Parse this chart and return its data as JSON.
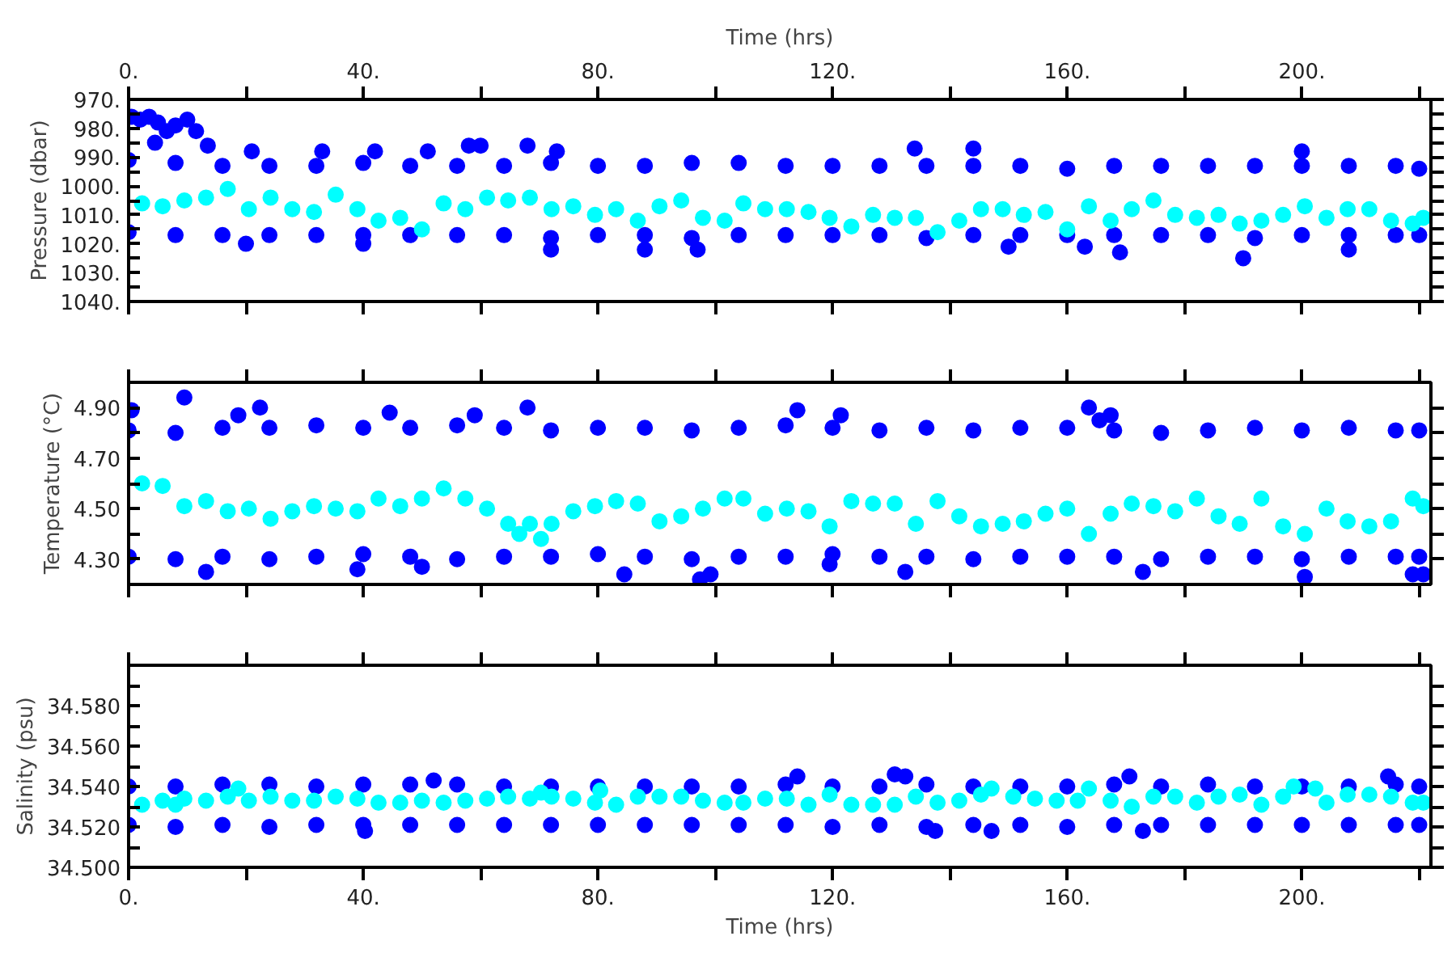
{
  "chart_data": [
    {
      "type": "scatter",
      "ylabel": "Pressure (dbar)",
      "x2label": "Time (hrs)",
      "marker": "circle",
      "tick_labels": "y",
      "xlim": [
        0,
        222
      ],
      "xticks": [
        0,
        20,
        40,
        60,
        80,
        100,
        120,
        140,
        160,
        180,
        200,
        220
      ],
      "x2lim": [
        0,
        222
      ],
      "x2ticks": [
        {
          "value": 0,
          "label": "0."
        },
        {
          "value": 20,
          "label": null
        },
        {
          "value": 40,
          "label": "40."
        },
        {
          "value": 60,
          "label": null
        },
        {
          "value": 80,
          "label": "80."
        },
        {
          "value": 100,
          "label": null
        },
        {
          "value": 120,
          "label": "120."
        },
        {
          "value": 140,
          "label": null
        },
        {
          "value": 160,
          "label": "160."
        },
        {
          "value": 180,
          "label": null
        },
        {
          "value": 200,
          "label": "200."
        },
        {
          "value": 220,
          "label": null
        }
      ],
      "ylim": [
        1040,
        970
      ],
      "yticks": [
        {
          "value": 970,
          "label": "970."
        },
        {
          "value": 975,
          "label": null
        },
        {
          "value": 980,
          "label": "980."
        },
        {
          "value": 985,
          "label": null
        },
        {
          "value": 990,
          "label": "990."
        },
        {
          "value": 995,
          "label": null
        },
        {
          "value": 1000,
          "label": "1000."
        },
        {
          "value": 1005,
          "label": null
        },
        {
          "value": 1010,
          "label": "1010."
        },
        {
          "value": 1015,
          "label": null
        },
        {
          "value": 1020,
          "label": "1020."
        },
        {
          "value": 1025,
          "label": null
        },
        {
          "value": 1030,
          "label": "1030."
        },
        {
          "value": 1035,
          "label": null
        },
        {
          "value": 1040,
          "label": "1040."
        }
      ],
      "series": [
        {
          "color": "#0000ff",
          "x": [
            0.5,
            2,
            3.5,
            5,
            6.5,
            8,
            10,
            11.5,
            4.5,
            0,
            8,
            16,
            24,
            32,
            40,
            48,
            56,
            64,
            72,
            80,
            88,
            96,
            104,
            112,
            120,
            128,
            136,
            144,
            152,
            160,
            168,
            176,
            184,
            192,
            200,
            208,
            216,
            220,
            0,
            8,
            16,
            24,
            32,
            40,
            48,
            56,
            64,
            72,
            80,
            88,
            96,
            104,
            112,
            120,
            128,
            136,
            144,
            152,
            160,
            168,
            176,
            184,
            192,
            200,
            208,
            216,
            220,
            13.5,
            21,
            33,
            42,
            51,
            58,
            60,
            68,
            73,
            20,
            40,
            72,
            88,
            97,
            150,
            163,
            169,
            190,
            208,
            134,
            144,
            200
          ],
          "values": [
            976,
            977,
            976,
            978,
            981,
            979,
            977,
            981,
            985,
            991,
            992,
            993,
            993,
            993,
            992,
            993,
            993,
            993,
            992,
            993,
            993,
            992,
            992,
            993,
            993,
            993,
            993,
            993,
            993,
            994,
            993,
            993,
            993,
            993,
            993,
            993,
            993,
            994,
            1016,
            1017,
            1017,
            1017,
            1017,
            1017,
            1017,
            1017,
            1017,
            1018,
            1017,
            1017,
            1018,
            1017,
            1017,
            1017,
            1017,
            1018,
            1017,
            1017,
            1017,
            1017,
            1017,
            1017,
            1018,
            1017,
            1017,
            1017,
            1017,
            986,
            988,
            988,
            988,
            988,
            986,
            986,
            986,
            988,
            1020,
            1020,
            1022,
            1022,
            1022,
            1021,
            1021,
            1023,
            1025,
            1022,
            987,
            987,
            988
          ]
        },
        {
          "color": "#00ffff",
          "x": [
            2.3,
            5.8,
            9.5,
            13.2,
            16.9,
            20.5,
            24.2,
            27.9,
            31.6,
            35.3,
            39.0,
            42.6,
            46.3,
            50.0,
            53.7,
            57.4,
            61.1,
            64.7,
            68.4,
            72.1,
            75.8,
            79.5,
            83.1,
            86.8,
            90.5,
            94.2,
            97.9,
            101.6,
            104.8,
            108.5,
            112.2,
            115.9,
            119.5,
            123.2,
            126.9,
            130.6,
            134.2,
            137.9,
            141.6,
            145.3,
            149.0,
            152.6,
            156.3,
            160.0,
            163.7,
            167.4,
            171.0,
            174.7,
            178.4,
            182.1,
            185.8,
            189.4,
            193.1,
            196.8,
            200.5,
            204.2,
            207.8,
            211.5,
            215.2,
            218.9,
            220.7
          ],
          "values": [
            1006,
            1007,
            1005,
            1004,
            1001,
            1008,
            1004,
            1008,
            1009,
            1003,
            1008,
            1012,
            1011,
            1015,
            1006,
            1008,
            1004,
            1005,
            1004,
            1008,
            1007,
            1010,
            1008,
            1012,
            1007,
            1005,
            1011,
            1012,
            1006,
            1008,
            1008,
            1009,
            1011,
            1014,
            1010,
            1011,
            1011,
            1016,
            1012,
            1008,
            1008,
            1010,
            1009,
            1015,
            1007,
            1012,
            1008,
            1005,
            1010,
            1011,
            1010,
            1013,
            1012,
            1010,
            1007,
            1011,
            1008,
            1008,
            1012,
            1013,
            1011
          ]
        }
      ]
    },
    {
      "type": "scatter",
      "ylabel": "Temperature (°C)",
      "marker": "circle",
      "tick_labels": "y",
      "xlim": [
        0,
        222
      ],
      "xticks": [
        0,
        20,
        40,
        60,
        80,
        100,
        120,
        140,
        160,
        180,
        200,
        220
      ],
      "ylim": [
        4.2,
        5.0
      ],
      "yticks": [
        {
          "value": 4.3,
          "label": "4.30"
        },
        {
          "value": 4.4,
          "label": null
        },
        {
          "value": 4.5,
          "label": "4.50"
        },
        {
          "value": 4.6,
          "label": null
        },
        {
          "value": 4.7,
          "label": "4.70"
        },
        {
          "value": 4.8,
          "label": null
        },
        {
          "value": 4.9,
          "label": "4.90"
        }
      ],
      "series": [
        {
          "color": "#0000ff",
          "x": [
            0,
            8,
            16,
            24,
            32,
            40,
            48,
            56,
            64,
            72,
            80,
            88,
            96,
            104,
            112,
            120,
            128,
            136,
            144,
            152,
            160,
            168,
            176,
            184,
            192,
            200,
            208,
            216,
            220,
            0,
            8,
            16,
            24,
            32,
            40,
            48,
            56,
            64,
            72,
            80,
            88,
            96,
            104,
            112,
            120,
            128,
            136,
            144,
            152,
            160,
            168,
            176,
            184,
            192,
            200,
            208,
            216,
            220,
            0.5,
            9.5,
            22.4,
            18.7,
            44.5,
            68,
            59,
            13.2,
            39,
            50,
            84.5,
            97.4,
            99.2,
            114,
            121.4,
            163.7,
            165.5,
            167.4,
            132.4,
            172.9,
            200.5,
            218.9,
            220.7,
            119.5
          ],
          "values": [
            4.81,
            4.8,
            4.82,
            4.82,
            4.83,
            4.82,
            4.82,
            4.83,
            4.82,
            4.81,
            4.82,
            4.82,
            4.81,
            4.82,
            4.83,
            4.82,
            4.81,
            4.82,
            4.81,
            4.82,
            4.82,
            4.81,
            4.8,
            4.81,
            4.82,
            4.81,
            4.82,
            4.81,
            4.81,
            4.31,
            4.3,
            4.31,
            4.3,
            4.31,
            4.32,
            4.31,
            4.3,
            4.31,
            4.31,
            4.32,
            4.31,
            4.3,
            4.31,
            4.31,
            4.32,
            4.31,
            4.31,
            4.3,
            4.31,
            4.31,
            4.31,
            4.3,
            4.31,
            4.31,
            4.3,
            4.31,
            4.31,
            4.31,
            4.89,
            4.94,
            4.9,
            4.87,
            4.88,
            4.9,
            4.87,
            4.25,
            4.26,
            4.27,
            4.24,
            4.22,
            4.24,
            4.89,
            4.87,
            4.9,
            4.85,
            4.87,
            4.25,
            4.25,
            4.23,
            4.24,
            4.24,
            4.28
          ]
        },
        {
          "color": "#00ffff",
          "x": [
            2.3,
            5.8,
            9.5,
            13.2,
            16.9,
            20.5,
            24.2,
            27.9,
            31.6,
            35.3,
            39.0,
            42.6,
            46.3,
            50.0,
            53.7,
            57.4,
            61.1,
            64.7,
            66.6,
            68.4,
            70.3,
            72.1,
            75.8,
            79.5,
            83.1,
            86.8,
            90.5,
            94.2,
            97.9,
            101.6,
            104.8,
            108.5,
            112.2,
            115.9,
            119.5,
            123.2,
            126.9,
            130.6,
            134.2,
            137.9,
            141.6,
            145.3,
            149.0,
            152.6,
            156.3,
            160.0,
            163.7,
            167.4,
            171.0,
            174.7,
            178.4,
            182.1,
            185.8,
            189.4,
            193.1,
            196.8,
            200.5,
            204.2,
            207.8,
            211.5,
            215.2,
            218.9,
            220.7
          ],
          "values": [
            4.6,
            4.59,
            4.51,
            4.53,
            4.49,
            4.5,
            4.46,
            4.49,
            4.51,
            4.5,
            4.49,
            4.54,
            4.51,
            4.54,
            4.58,
            4.54,
            4.5,
            4.44,
            4.4,
            4.44,
            4.38,
            4.44,
            4.49,
            4.51,
            4.53,
            4.52,
            4.45,
            4.47,
            4.5,
            4.54,
            4.54,
            4.48,
            4.5,
            4.49,
            4.43,
            4.53,
            4.52,
            4.52,
            4.44,
            4.53,
            4.47,
            4.43,
            4.44,
            4.45,
            4.48,
            4.5,
            4.4,
            4.48,
            4.52,
            4.51,
            4.49,
            4.54,
            4.47,
            4.44,
            4.54,
            4.43,
            4.4,
            4.5,
            4.45,
            4.43,
            4.45,
            4.54,
            4.51
          ]
        }
      ]
    },
    {
      "type": "scatter",
      "ylabel": "Salinity (psu)",
      "xlabel": "Time (hrs)",
      "marker": "circle",
      "xlim": [
        0,
        222
      ],
      "xticks": [
        {
          "value": 0,
          "label": "0."
        },
        {
          "value": 20,
          "label": null
        },
        {
          "value": 40,
          "label": "40."
        },
        {
          "value": 60,
          "label": null
        },
        {
          "value": 80,
          "label": "80."
        },
        {
          "value": 100,
          "label": null
        },
        {
          "value": 120,
          "label": "120."
        },
        {
          "value": 140,
          "label": null
        },
        {
          "value": 160,
          "label": "160."
        },
        {
          "value": 180,
          "label": null
        },
        {
          "value": 200,
          "label": "200."
        },
        {
          "value": 220,
          "label": null
        }
      ],
      "ylim": [
        34.5,
        34.6
      ],
      "yticks": [
        {
          "value": 34.5,
          "label": "34.500"
        },
        {
          "value": 34.51,
          "label": null
        },
        {
          "value": 34.52,
          "label": "34.520"
        },
        {
          "value": 34.53,
          "label": null
        },
        {
          "value": 34.54,
          "label": "34.540"
        },
        {
          "value": 34.55,
          "label": null
        },
        {
          "value": 34.56,
          "label": "34.560"
        },
        {
          "value": 34.57,
          "label": null
        },
        {
          "value": 34.58,
          "label": "34.580"
        },
        {
          "value": 34.59,
          "label": null
        }
      ],
      "series": [
        {
          "color": "#0000ff",
          "x": [
            0,
            8,
            16,
            24,
            32,
            40,
            48,
            56,
            64,
            72,
            80,
            88,
            96,
            104,
            112,
            120,
            128,
            136,
            144,
            152,
            160,
            168,
            176,
            184,
            192,
            200,
            208,
            216,
            220,
            0,
            8,
            16,
            24,
            32,
            40,
            48,
            56,
            64,
            72,
            80,
            88,
            96,
            104,
            112,
            120,
            128,
            136,
            144,
            152,
            160,
            168,
            176,
            184,
            192,
            200,
            208,
            216,
            220,
            40.3,
            52,
            114,
            130.6,
            132.4,
            170.6,
            214.7,
            147.1,
            172.9,
            137.5
          ],
          "values": [
            34.54,
            34.54,
            34.541,
            34.541,
            34.54,
            34.541,
            34.541,
            34.541,
            34.54,
            34.54,
            34.54,
            34.54,
            34.54,
            34.54,
            34.541,
            34.54,
            34.54,
            34.541,
            34.54,
            34.54,
            34.54,
            34.541,
            34.54,
            34.541,
            34.54,
            34.54,
            34.54,
            34.541,
            34.54,
            34.521,
            34.52,
            34.521,
            34.52,
            34.521,
            34.521,
            34.521,
            34.521,
            34.521,
            34.521,
            34.521,
            34.521,
            34.521,
            34.521,
            34.521,
            34.52,
            34.521,
            34.52,
            34.521,
            34.521,
            34.52,
            34.521,
            34.521,
            34.521,
            34.521,
            34.521,
            34.521,
            34.521,
            34.521,
            34.518,
            34.543,
            34.545,
            34.546,
            34.545,
            34.545,
            34.545,
            34.518,
            34.518,
            34.518
          ]
        },
        {
          "color": "#00ffff",
          "x": [
            2.3,
            5.8,
            8,
            9.5,
            13.2,
            16.9,
            18.7,
            20.5,
            24.2,
            27.9,
            31.6,
            35.3,
            39.0,
            42.6,
            46.3,
            50.0,
            53.7,
            57.4,
            61.1,
            64.7,
            68.4,
            70.3,
            72.1,
            75.8,
            79.5,
            80.4,
            83.1,
            86.8,
            90.5,
            94.2,
            97.9,
            101.6,
            104.8,
            108.5,
            112.2,
            115.9,
            119.5,
            123.2,
            126.9,
            130.6,
            134.2,
            137.9,
            141.6,
            145.3,
            147.1,
            150.8,
            154.5,
            158.2,
            161.8,
            163.7,
            167.4,
            171.0,
            174.7,
            178.4,
            182.1,
            185.8,
            189.4,
            193.1,
            196.8,
            198.6,
            202.3,
            204.2,
            207.8,
            211.5,
            215.2,
            218.9,
            220.7
          ],
          "values": [
            34.531,
            34.533,
            34.531,
            34.534,
            34.533,
            34.535,
            34.539,
            34.533,
            34.535,
            34.533,
            34.533,
            34.535,
            34.534,
            34.532,
            34.532,
            34.533,
            34.532,
            34.533,
            34.534,
            34.535,
            34.534,
            34.537,
            34.535,
            34.534,
            34.532,
            34.538,
            34.531,
            34.535,
            34.535,
            34.535,
            34.533,
            34.532,
            34.532,
            34.534,
            34.534,
            34.531,
            34.536,
            34.531,
            34.531,
            34.531,
            34.535,
            34.532,
            34.533,
            34.536,
            34.539,
            34.535,
            34.534,
            34.533,
            34.533,
            34.539,
            34.533,
            34.53,
            34.535,
            34.535,
            34.532,
            34.535,
            34.536,
            34.531,
            34.535,
            34.54,
            34.539,
            34.532,
            34.536,
            34.536,
            34.535,
            34.532,
            34.532
          ]
        }
      ]
    }
  ]
}
